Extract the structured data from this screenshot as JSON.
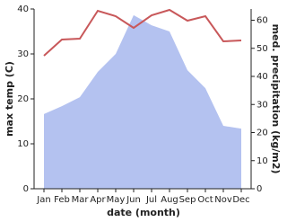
{
  "chart_data": {
    "type": "area-line",
    "x_label": "date (month)",
    "y_label": "max temp (C)",
    "y2_label": "med. precipitation (kg/m2)",
    "categories": [
      "Jan",
      "Feb",
      "Mar",
      "Apr",
      "May",
      "Jun",
      "Jul",
      "Aug",
      "Sep",
      "Oct",
      "Nov",
      "Dec"
    ],
    "series": [
      {
        "name": "med. precipitation",
        "color": "#b4c2f0",
        "axis": "y2",
        "kind": "area",
        "values": [
          26.6,
          29.4,
          32.6,
          41.6,
          48,
          61.8,
          58.2,
          56,
          42.2,
          35.8,
          22.4,
          21.4
        ]
      },
      {
        "name": "max temp",
        "color": "#c8585a",
        "axis": "y",
        "kind": "line",
        "values": [
          29.6,
          33.2,
          33.4,
          39.6,
          38.4,
          35.8,
          38.6,
          39.8,
          37.4,
          38.4,
          32.8,
          33
        ]
      }
    ],
    "ylim": [
      0,
      40
    ],
    "yticks": [
      0,
      10,
      20,
      30,
      40
    ],
    "y2lim": [
      0,
      64
    ],
    "y2ticks": [
      0,
      10,
      20,
      30,
      40,
      50,
      60
    ]
  }
}
